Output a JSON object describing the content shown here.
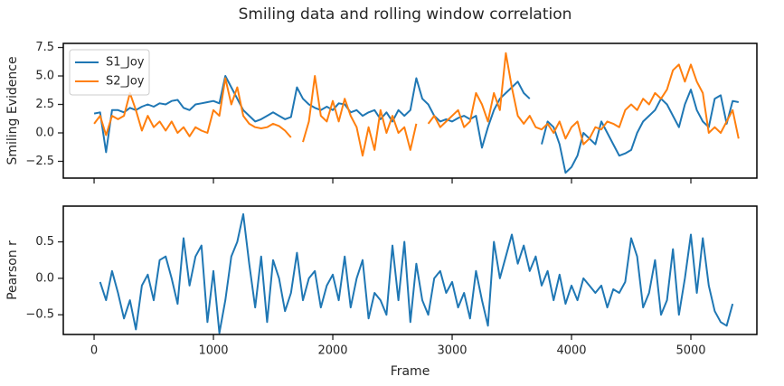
{
  "title": "Smiling data and rolling window correlation",
  "chart_data": [
    {
      "type": "line",
      "ylabel": "Smiling Evidence",
      "legend": "upper left",
      "xtick_labels": false,
      "xlim": [
        -258,
        5553
      ],
      "xticks": [
        0,
        1000,
        2000,
        3000,
        4000,
        5000
      ],
      "ylim": [
        -3.97,
        7.86
      ],
      "yticks": [
        {
          "value": -2.5,
          "label": "−2.5"
        },
        {
          "value": 0,
          "label": "0.0"
        },
        2.5,
        {
          "value": 5,
          "label": "5.0"
        },
        7.5
      ],
      "x": [
        0,
        50,
        100,
        150,
        200,
        250,
        300,
        350,
        400,
        450,
        500,
        550,
        600,
        650,
        700,
        750,
        800,
        850,
        900,
        950,
        1000,
        1050,
        1100,
        1150,
        1200,
        1250,
        1300,
        1350,
        1400,
        1450,
        1500,
        1550,
        1600,
        1650,
        1700,
        1750,
        1800,
        1850,
        1900,
        1950,
        2000,
        2050,
        2100,
        2150,
        2200,
        2250,
        2300,
        2350,
        2400,
        2450,
        2500,
        2550,
        2600,
        2650,
        2700,
        2750,
        2800,
        2850,
        2900,
        2950,
        3000,
        3050,
        3100,
        3150,
        3200,
        3250,
        3300,
        3350,
        3400,
        3450,
        3500,
        3550,
        3600,
        3650,
        3700,
        3750,
        3800,
        3850,
        3900,
        3950,
        4000,
        4050,
        4100,
        4150,
        4200,
        4250,
        4300,
        4350,
        4400,
        4450,
        4500,
        4550,
        4600,
        4650,
        4700,
        4750,
        4800,
        4850,
        4900,
        4950,
        5000,
        5050,
        5100,
        5150,
        5200,
        5250,
        5300,
        5350,
        5400
      ],
      "series": [
        {
          "name": "S1_Joy",
          "color": "#1f77b4",
          "values": [
            1.7,
            1.8,
            -1.7,
            2.0,
            2.0,
            1.8,
            2.2,
            2.0,
            2.3,
            2.5,
            2.3,
            2.6,
            2.5,
            2.8,
            2.9,
            2.2,
            2.0,
            2.5,
            2.6,
            2.7,
            2.8,
            2.6,
            5.0,
            4.0,
            3.0,
            2.0,
            1.5,
            1.0,
            1.2,
            1.5,
            1.8,
            1.5,
            1.2,
            1.4,
            4.0,
            3.0,
            2.5,
            2.2,
            2.0,
            2.3,
            2.0,
            2.6,
            2.5,
            1.8,
            2.0,
            1.5,
            1.8,
            2.0,
            1.2,
            1.8,
            1.0,
            2.0,
            1.5,
            2.0,
            4.8,
            3.0,
            2.5,
            1.5,
            1.0,
            1.2,
            1.0,
            1.3,
            1.5,
            1.2,
            1.5,
            -1.3,
            0.5,
            2.0,
            3.0,
            3.5,
            4.0,
            4.5,
            3.5,
            3.0,
            null,
            -1.0,
            1.0,
            0.5,
            -1.0,
            -3.5,
            -3.0,
            -2.0,
            0.0,
            -0.5,
            -1.0,
            1.0,
            0.0,
            -1.0,
            -2.0,
            -1.8,
            -1.5,
            0.0,
            1.0,
            1.5,
            2.0,
            3.0,
            2.5,
            1.5,
            0.5,
            2.5,
            3.8,
            2.0,
            1.0,
            0.5,
            3.0,
            3.3,
            0.8,
            2.8,
            2.7
          ]
        },
        {
          "name": "S2_Joy",
          "color": "#ff7f0e",
          "values": [
            0.8,
            1.5,
            -0.2,
            1.5,
            1.2,
            1.5,
            3.5,
            2.0,
            0.2,
            1.5,
            0.5,
            1.0,
            0.2,
            1.0,
            0.0,
            0.5,
            -0.3,
            0.5,
            0.2,
            0.0,
            2.0,
            1.5,
            4.8,
            2.5,
            4.0,
            1.5,
            0.8,
            0.5,
            0.4,
            0.5,
            0.8,
            0.6,
            0.2,
            -0.4,
            null,
            -0.8,
            1.0,
            5.0,
            1.5,
            1.0,
            2.8,
            1.0,
            3.0,
            1.5,
            0.5,
            -2.0,
            0.5,
            -1.5,
            2.0,
            0.0,
            1.5,
            0.0,
            0.5,
            -1.5,
            0.8,
            null,
            0.8,
            1.5,
            0.5,
            1.0,
            1.5,
            2.0,
            0.5,
            1.0,
            3.5,
            2.5,
            1.0,
            3.5,
            2.0,
            7.0,
            4.0,
            1.5,
            0.8,
            1.5,
            0.5,
            0.3,
            0.8,
            0.0,
            1.0,
            -0.5,
            0.5,
            1.0,
            -1.0,
            -0.5,
            0.5,
            0.3,
            1.0,
            0.8,
            0.5,
            2.0,
            2.5,
            2.0,
            3.0,
            2.5,
            3.5,
            3.0,
            3.8,
            5.5,
            6.0,
            4.5,
            6.0,
            4.5,
            3.5,
            0.0,
            0.5,
            0.0,
            1.0,
            2.0,
            -0.5
          ]
        }
      ]
    },
    {
      "type": "line",
      "ylabel": "Pearson r",
      "xlabel": "Frame",
      "xlim": [
        -258,
        5553
      ],
      "xticks": [
        0,
        1000,
        2000,
        3000,
        4000,
        5000
      ],
      "ylim": [
        -0.77,
        0.99
      ],
      "yticks": [
        {
          "value": -0.5,
          "label": "−0.5"
        },
        {
          "value": 0,
          "label": "0.0"
        },
        0.5
      ],
      "x": [
        50,
        100,
        150,
        200,
        250,
        300,
        350,
        400,
        450,
        500,
        550,
        600,
        650,
        700,
        750,
        800,
        850,
        900,
        950,
        1000,
        1050,
        1100,
        1150,
        1200,
        1250,
        1300,
        1350,
        1400,
        1450,
        1500,
        1550,
        1600,
        1650,
        1700,
        1750,
        1800,
        1850,
        1900,
        1950,
        2000,
        2050,
        2100,
        2150,
        2200,
        2250,
        2300,
        2350,
        2400,
        2450,
        2500,
        2550,
        2600,
        2650,
        2700,
        2750,
        2800,
        2850,
        2900,
        2950,
        3000,
        3050,
        3100,
        3150,
        3200,
        3250,
        3300,
        3350,
        3400,
        3450,
        3500,
        3550,
        3600,
        3650,
        3700,
        3750,
        3800,
        3850,
        3900,
        3950,
        4000,
        4050,
        4100,
        4150,
        4200,
        4250,
        4300,
        4350,
        4400,
        4450,
        4500,
        4550,
        4600,
        4650,
        4700,
        4750,
        4800,
        4850,
        4900,
        4950,
        5000,
        5050,
        5100,
        5150,
        5200,
        5250,
        5300,
        5350
      ],
      "series": [
        {
          "color": "#1f77b4",
          "values": [
            -0.05,
            -0.3,
            0.1,
            -0.2,
            -0.55,
            -0.3,
            -0.7,
            -0.1,
            0.05,
            -0.3,
            0.25,
            0.3,
            0.0,
            -0.35,
            0.55,
            -0.1,
            0.3,
            0.45,
            -0.6,
            0.1,
            -0.75,
            -0.3,
            0.3,
            0.5,
            0.88,
            0.2,
            -0.4,
            0.3,
            -0.6,
            0.25,
            0.0,
            -0.45,
            -0.2,
            0.35,
            -0.3,
            0.0,
            0.1,
            -0.4,
            -0.1,
            0.05,
            -0.3,
            0.3,
            -0.4,
            0.0,
            0.25,
            -0.55,
            -0.2,
            -0.3,
            -0.5,
            0.45,
            -0.3,
            0.5,
            -0.6,
            0.2,
            -0.3,
            -0.5,
            0.0,
            0.1,
            -0.2,
            -0.05,
            -0.4,
            -0.2,
            -0.55,
            0.1,
            -0.3,
            -0.65,
            0.5,
            0.0,
            0.3,
            0.6,
            0.2,
            0.45,
            0.1,
            0.3,
            -0.1,
            0.1,
            -0.3,
            0.05,
            -0.35,
            -0.1,
            -0.3,
            0.0,
            -0.1,
            -0.2,
            -0.1,
            -0.4,
            -0.15,
            -0.2,
            -0.05,
            0.55,
            0.3,
            -0.4,
            -0.2,
            0.25,
            -0.5,
            -0.3,
            0.4,
            -0.5,
            0.0,
            0.6,
            -0.2,
            0.55,
            -0.1,
            -0.45,
            -0.6,
            -0.65,
            -0.35
          ]
        }
      ]
    }
  ]
}
